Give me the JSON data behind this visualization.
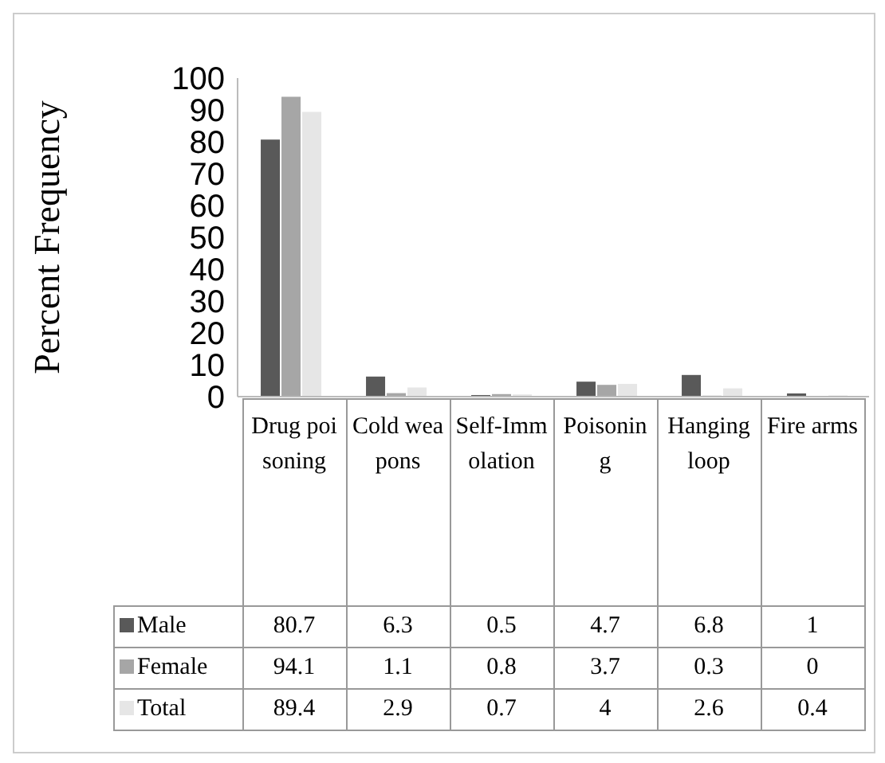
{
  "chart_data": {
    "type": "bar",
    "ylabel": "Percent Frequency",
    "categories": [
      "Drug poisoning",
      "Cold weapons",
      "Self-Immolation",
      "Poisoning",
      "Hanging loop",
      "Fire arms"
    ],
    "series": [
      {
        "name": "Male",
        "color": "#595959",
        "values": [
          80.7,
          6.3,
          0.5,
          4.7,
          6.8,
          1
        ]
      },
      {
        "name": "Female",
        "color": "#a6a6a6",
        "values": [
          94.1,
          1.1,
          0.8,
          3.7,
          0.3,
          0
        ]
      },
      {
        "name": "Total",
        "color": "#e6e6e6",
        "values": [
          89.4,
          2.9,
          0.7,
          4,
          2.6,
          0.4
        ]
      }
    ],
    "ylim": [
      0,
      100
    ],
    "yticks": [
      0,
      10,
      20,
      30,
      40,
      50,
      60,
      70,
      80,
      90,
      100
    ],
    "legend": "bottom",
    "data_labels": true
  }
}
